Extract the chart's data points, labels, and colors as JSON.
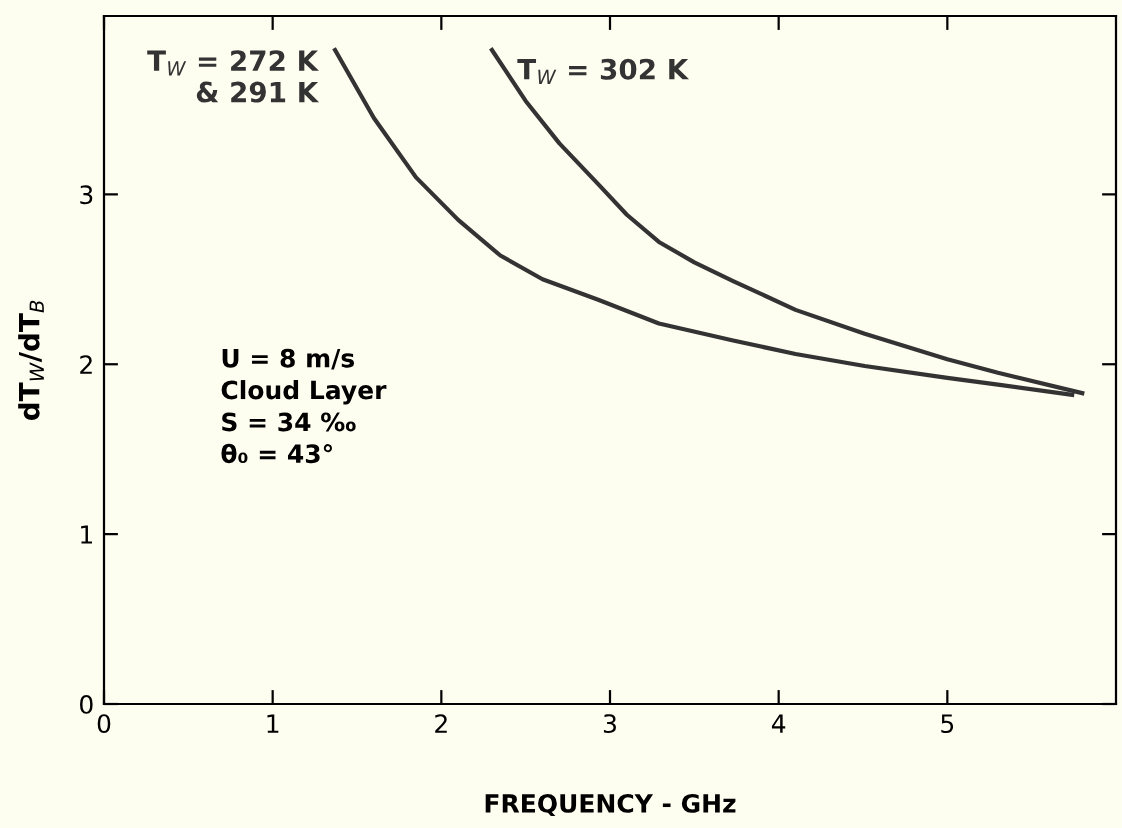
{
  "chart_data": {
    "type": "line",
    "xlabel": "FREQUENCY - GHz",
    "ylabel": "dT$_{W}$/dT$_{B}$",
    "series": [
      {
        "name": "T$_{W}$ = 272 K\n& 291 K",
        "color": "#333333",
        "x": [
          1.37,
          1.6,
          1.85,
          2.1,
          2.35,
          2.6,
          2.93,
          3.29,
          3.73,
          4.1,
          4.51,
          5.0,
          5.3,
          5.74
        ],
        "values": [
          3.85,
          3.45,
          3.1,
          2.85,
          2.64,
          2.5,
          2.38,
          2.24,
          2.14,
          2.06,
          1.99,
          1.92,
          1.88,
          1.82
        ]
      },
      {
        "name": "T$_{W}$ = 302 K",
        "color": "#333333",
        "x": [
          2.3,
          2.5,
          2.7,
          2.93,
          3.1,
          3.29,
          3.5,
          3.73,
          4.1,
          4.51,
          5.0,
          5.3,
          5.8
        ],
        "values": [
          3.85,
          3.55,
          3.3,
          3.06,
          2.88,
          2.72,
          2.6,
          2.49,
          2.32,
          2.18,
          2.03,
          1.95,
          1.83
        ]
      }
    ],
    "annotations": [
      "U = 8 m/s\nCloud Layer\nS = 34 ‰\nθ₀ = 43°"
    ],
    "xlim": [
      0,
      6
    ],
    "ylim": [
      0,
      4.05
    ],
    "xticks": [
      0,
      1,
      2,
      3,
      4,
      5
    ],
    "yticks": [
      0,
      1,
      2,
      3
    ],
    "grid": false,
    "legend": false,
    "marker": "none",
    "line_style": "solid"
  }
}
